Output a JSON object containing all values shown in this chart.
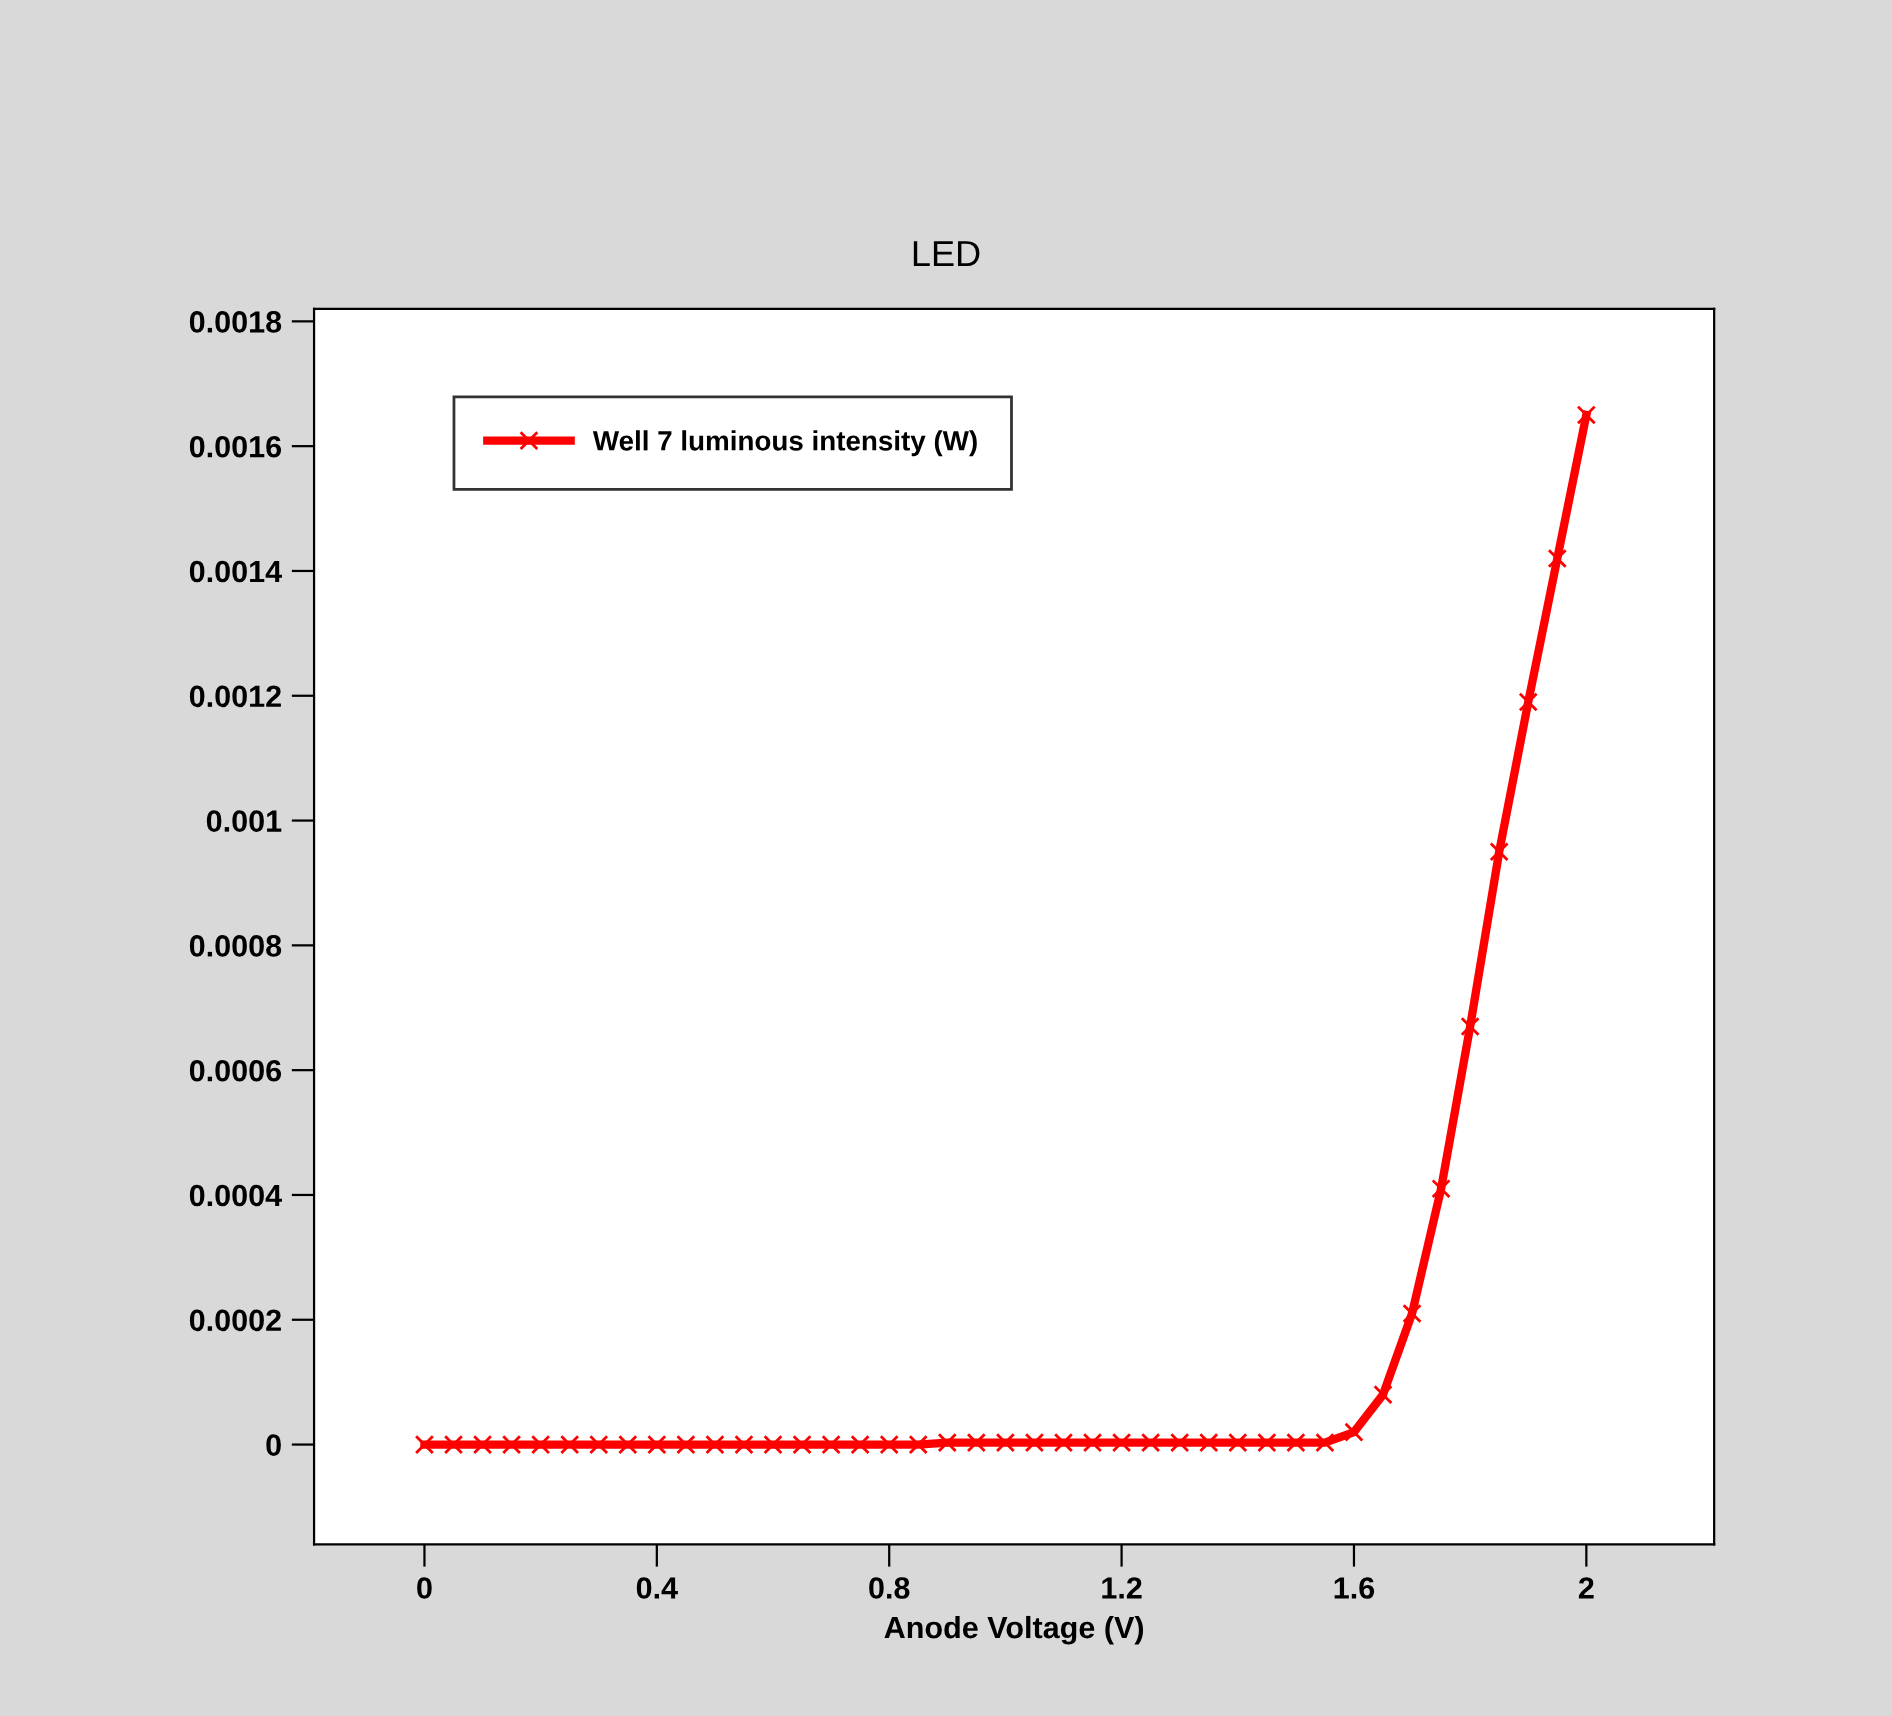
{
  "chart_data": {
    "type": "line",
    "title": "LED",
    "xlabel": "Anode Voltage (V)",
    "x": [
      0,
      0.05,
      0.1,
      0.15,
      0.2,
      0.25,
      0.3,
      0.35,
      0.4,
      0.45,
      0.5,
      0.55,
      0.6,
      0.65,
      0.7,
      0.75,
      0.8,
      0.85,
      0.9,
      0.95,
      1.0,
      1.05,
      1.1,
      1.15,
      1.2,
      1.25,
      1.3,
      1.35,
      1.4,
      1.45,
      1.5,
      1.55,
      1.6,
      1.65,
      1.7,
      1.75,
      1.8,
      1.85,
      1.9,
      1.95,
      2.0
    ],
    "series": [
      {
        "name": "Well 7 luminous intensity (W)",
        "color": "#ff0000",
        "values": [
          0,
          0,
          0,
          0,
          0,
          0,
          0,
          0,
          0,
          0,
          0,
          0,
          0,
          0,
          0,
          0,
          0,
          0,
          3e-06,
          3e-06,
          3e-06,
          3e-06,
          3e-06,
          3e-06,
          3e-06,
          3e-06,
          3e-06,
          3e-06,
          3e-06,
          3e-06,
          3e-06,
          3e-06,
          2e-05,
          8e-05,
          0.00021,
          0.00041,
          0.00067,
          0.00095,
          0.00119,
          0.00142,
          0.00165
        ]
      }
    ],
    "xlim": [
      -0.19,
      2.22
    ],
    "ylim": [
      -0.00016,
      0.00182
    ],
    "xticks": [
      0,
      0.4,
      0.8,
      1.2,
      1.6,
      2
    ],
    "yticks": [
      0,
      0.0002,
      0.0004,
      0.0006,
      0.0008,
      0.001,
      0.0012,
      0.0014,
      0.0016,
      0.0018
    ],
    "marker": "cross",
    "line_style": "solid",
    "legend": "top left",
    "grid": false
  }
}
